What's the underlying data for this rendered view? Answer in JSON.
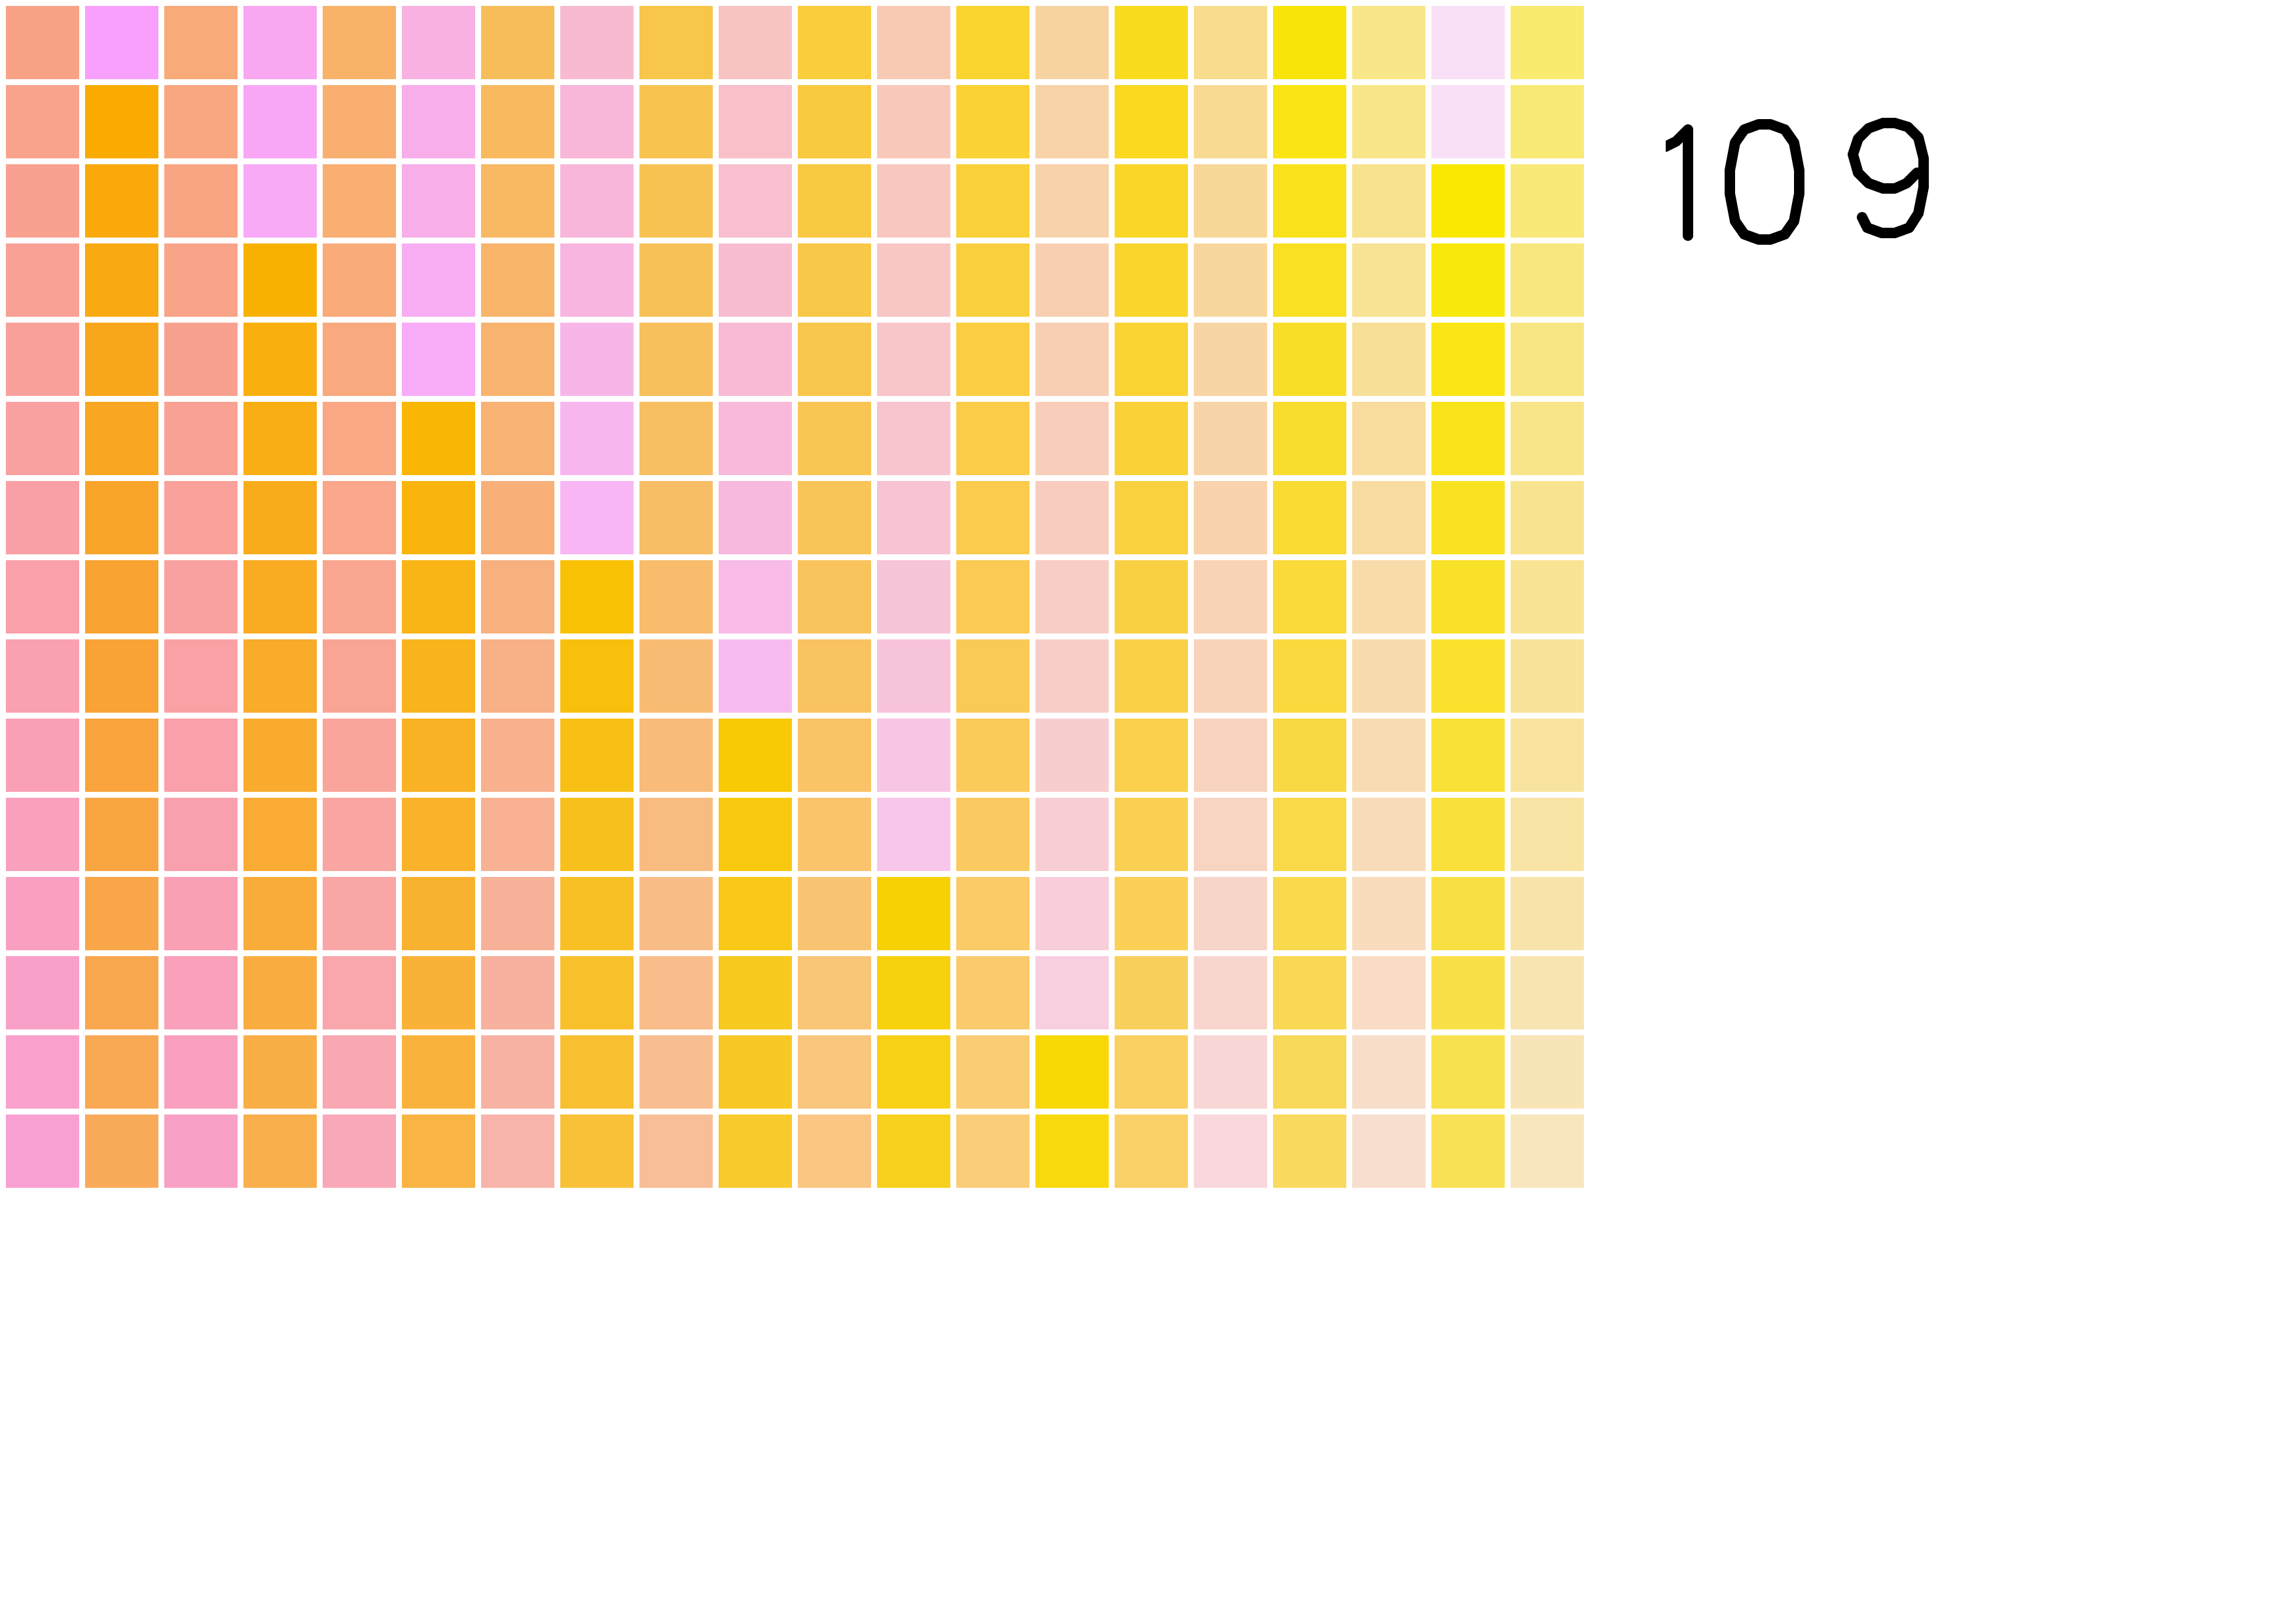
{
  "puzzle": {
    "rows": 15,
    "cols": 20,
    "grid": [
      [
        "#f9a386",
        "#f9a0fc",
        "#f9aa79",
        "#f8a7f0",
        "#f9b369",
        "#f8b1e2",
        "#f8bd5b",
        "#f8bad0",
        "#f8c64b",
        "#f8c3c3",
        "#f9cd3c",
        "#f8cab4",
        "#fad42f",
        "#f8d3a2",
        "#fadc1e",
        "#f8dd8f",
        "#f9e40a",
        "#f8e788",
        "#f9e0f6",
        "#f8eb6f"
      ],
      [
        "#f9a38d",
        "#f9ab01",
        "#f9a780",
        "#f8a7f6",
        "#f9af70",
        "#f8aeea",
        "#f8b95f",
        "#f8b6d8",
        "#f8c44f",
        "#f8c0c8",
        "#f9ca3f",
        "#f8c8ba",
        "#fad233",
        "#f8d3a7",
        "#fad91e",
        "#f8da93",
        "#f9e414",
        "#f8e688",
        "#f9e0f6",
        "#f8ea75"
      ],
      [
        "#f9a191",
        "#f9aa0a",
        "#f9a584",
        "#f8aaf6",
        "#f9ae72",
        "#f8aee8",
        "#f8b864",
        "#f8b6db",
        "#f8c253",
        "#f8bfce",
        "#f9c943",
        "#f8c7c0",
        "#fad038",
        "#f8d2ab",
        "#fad727",
        "#f8d899",
        "#f9e21c",
        "#f8e28e",
        "#f9e800",
        "#f8e979"
      ],
      [
        "#f9a196",
        "#f9a912",
        "#f9a389",
        "#f9b101",
        "#f9ab7a",
        "#f8adf2",
        "#f8b56a",
        "#f8b5df",
        "#f8c158",
        "#f8bcd0",
        "#f9c849",
        "#f8c6c5",
        "#facf3e",
        "#f8d0b1",
        "#fad62d",
        "#f8d79e",
        "#f9e022",
        "#f8e293",
        "#f9e80c",
        "#f8e77f"
      ],
      [
        "#f9a09b",
        "#f9a71a",
        "#f9a18f",
        "#f9af0d",
        "#f9a97e",
        "#f8abf6",
        "#f8b36e",
        "#f8b6e8",
        "#f8bf5d",
        "#f8bad4",
        "#f9c64d",
        "#f8c5c9",
        "#facd42",
        "#f8cfb5",
        "#fad433",
        "#f8d5a4",
        "#f9de28",
        "#f8df97",
        "#f9e614",
        "#f8e684"
      ],
      [
        "#f9a0a1",
        "#f9a622",
        "#f9a194",
        "#f9ae14",
        "#f9a784",
        "#f9b703",
        "#f8b273",
        "#f8b6ef",
        "#f8be62",
        "#f8b9da",
        "#f9c553",
        "#f8c4cd",
        "#facc47",
        "#f8cebb",
        "#fad238",
        "#f8d5a9",
        "#f9dd2e",
        "#f8dc9d",
        "#f9e41a",
        "#f8e58a"
      ],
      [
        "#f9a0a6",
        "#f9a52a",
        "#f9a19a",
        "#f9ac1b",
        "#f9a68a",
        "#f9b50d",
        "#f8b078",
        "#f8b6f4",
        "#f8bd67",
        "#f8b9df",
        "#f9c458",
        "#f8c3d2",
        "#facb4c",
        "#f8cdc0",
        "#fad13e",
        "#f8d3ae",
        "#f9db34",
        "#f8dba1",
        "#f9e320",
        "#f8e490"
      ],
      [
        "#f9a0ab",
        "#f9a332",
        "#f9a1a0",
        "#f9ab22",
        "#f9a690",
        "#f9b415",
        "#f8b07e",
        "#f8c103",
        "#f8bc6c",
        "#f8bbe8",
        "#f9c35c",
        "#f8c4d7",
        "#faca52",
        "#f8cdc5",
        "#fad043",
        "#f8d3b5",
        "#f9da39",
        "#f8dba8",
        "#f9e127",
        "#f8e494"
      ],
      [
        "#f9a0b1",
        "#f9a336",
        "#f9a1a5",
        "#f9ab2a",
        "#f9a595",
        "#f9b31d",
        "#f8b086",
        "#f8c00d",
        "#f8bb74",
        "#f8bbf0",
        "#f9c361",
        "#f8c4db",
        "#faca56",
        "#f8cdc9",
        "#fad048",
        "#f8d3ba",
        "#f9d93e",
        "#f8dbad",
        "#f9e12d",
        "#f8e39a"
      ],
      [
        "#f9a0b6",
        "#f9a43c",
        "#f9a0aa",
        "#f9ab2e",
        "#f9a59c",
        "#f9b224",
        "#f8b08d",
        "#f8c015",
        "#f8bb7a",
        "#f8c905",
        "#f9c366",
        "#f8c5e4",
        "#faca5b",
        "#f8cdce",
        "#fad04c",
        "#f8d3be",
        "#f9d943",
        "#f8dbb2",
        "#f9e135",
        "#f8e49e"
      ],
      [
        "#f9a0bc",
        "#f9a542",
        "#f9a0af",
        "#f9ab34",
        "#f9a5a1",
        "#f9b22a",
        "#f8b193",
        "#f8c01c",
        "#f8bc80",
        "#f8c90e",
        "#f9c46c",
        "#f8c6ea",
        "#faca61",
        "#f8ced4",
        "#fad052",
        "#f8d4c3",
        "#f9d948",
        "#f8dbb8",
        "#f9e03b",
        "#f8e4a5"
      ],
      [
        "#f9a0c2",
        "#f9a648",
        "#f9a0b4",
        "#f9ac3a",
        "#f9a6a6",
        "#f9b230",
        "#f8b199",
        "#f8c025",
        "#f8bd86",
        "#f8c917",
        "#f9c471",
        "#f8d105",
        "#facb67",
        "#f8ceda",
        "#fad057",
        "#f8d5c9",
        "#f9d94e",
        "#f8dcbd",
        "#f9e042",
        "#f8e4ab"
      ],
      [
        "#f9a0c8",
        "#f9a74e",
        "#f9a0ba",
        "#f9ad40",
        "#f9a7ac",
        "#f9b237",
        "#f8b19e",
        "#f8c02b",
        "#f8bd8b",
        "#f8c91f",
        "#f9c577",
        "#f8d10e",
        "#facb6d",
        "#f8cfe0",
        "#fad05d",
        "#f8d6cf",
        "#f9d953",
        "#f8dcc3",
        "#f9e048",
        "#f8e4b1"
      ],
      [
        "#f9a0cd",
        "#f9a854",
        "#f9a0c0",
        "#f9ae46",
        "#f9a7b2",
        "#f9b33d",
        "#f8b2a4",
        "#f8c031",
        "#f8be91",
        "#f8c926",
        "#f9c67d",
        "#f8d117",
        "#facc73",
        "#f8d905",
        "#fad062",
        "#f8d7d6",
        "#f9d959",
        "#f8ddc9",
        "#f9e04e",
        "#f8e5b7"
      ],
      [
        "#f9a0d3",
        "#f9aa5a",
        "#f9a0c6",
        "#f9af4c",
        "#f9a8b8",
        "#f9b444",
        "#f8b3aa",
        "#f8c138",
        "#f8be97",
        "#f8ca2c",
        "#f9c683",
        "#f8d11e",
        "#facd79",
        "#f8d90e",
        "#fad168",
        "#f8d8dc",
        "#f9da5e",
        "#f8dece",
        "#f9e054",
        "#f8e6bd"
      ]
    ]
  },
  "hud": {
    "score": "109"
  }
}
